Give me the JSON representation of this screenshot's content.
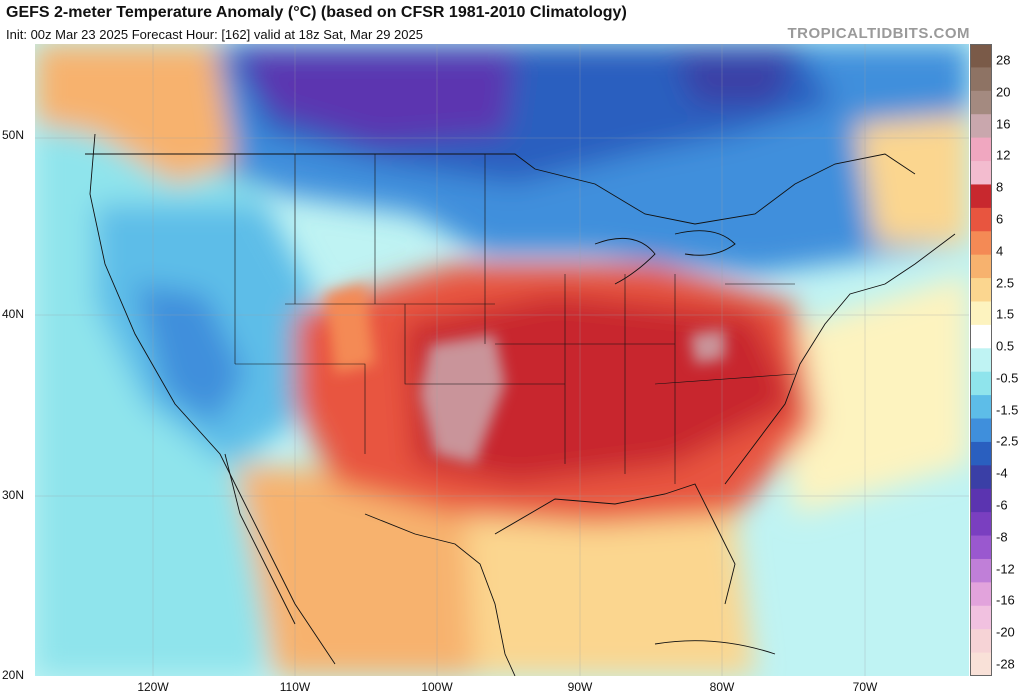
{
  "header": {
    "title": "GEFS 2-meter Temperature Anomaly (°C) (based on CFSR 1981-2010 Climatology)",
    "subtitle": "Init: 00z Mar 23 2025   Forecast Hour: [162]   valid at 18z Sat, Mar 29 2025",
    "brand": "TROPICALTIDBITS.COM"
  },
  "axes": {
    "lat_labels": [
      "50N",
      "40N",
      "30N",
      "20N"
    ],
    "lon_labels": [
      "120W",
      "110W",
      "100W",
      "90W",
      "80W",
      "70W"
    ]
  },
  "colorbar": {
    "labels": [
      "28",
      "20",
      "16",
      "12",
      "8",
      "6",
      "4",
      "2.5",
      "1.5",
      "0.5",
      "-0.5",
      "-1.5",
      "-2.5",
      "-4",
      "-6",
      "-8",
      "-12",
      "-16",
      "-20",
      "-28"
    ],
    "colors": [
      "#7a5a48",
      "#8e7364",
      "#a48a80",
      "#c9a7ad",
      "#f0a7c0",
      "#f3bccf",
      "#c8282e",
      "#e8553f",
      "#f48a55",
      "#f7b26e",
      "#fbd68f",
      "#fdf3bf",
      "#ffffff",
      "#bff3f3",
      "#8fe4ec",
      "#5dbde8",
      "#3f8fdc",
      "#2a5fbf",
      "#3a3fa6",
      "#5b34b0",
      "#7a3fc0",
      "#9a58cf",
      "#c07fd8",
      "#e2a3dc",
      "#f1c1e0",
      "#f6d3d6",
      "#f9e1d8"
    ]
  }
}
